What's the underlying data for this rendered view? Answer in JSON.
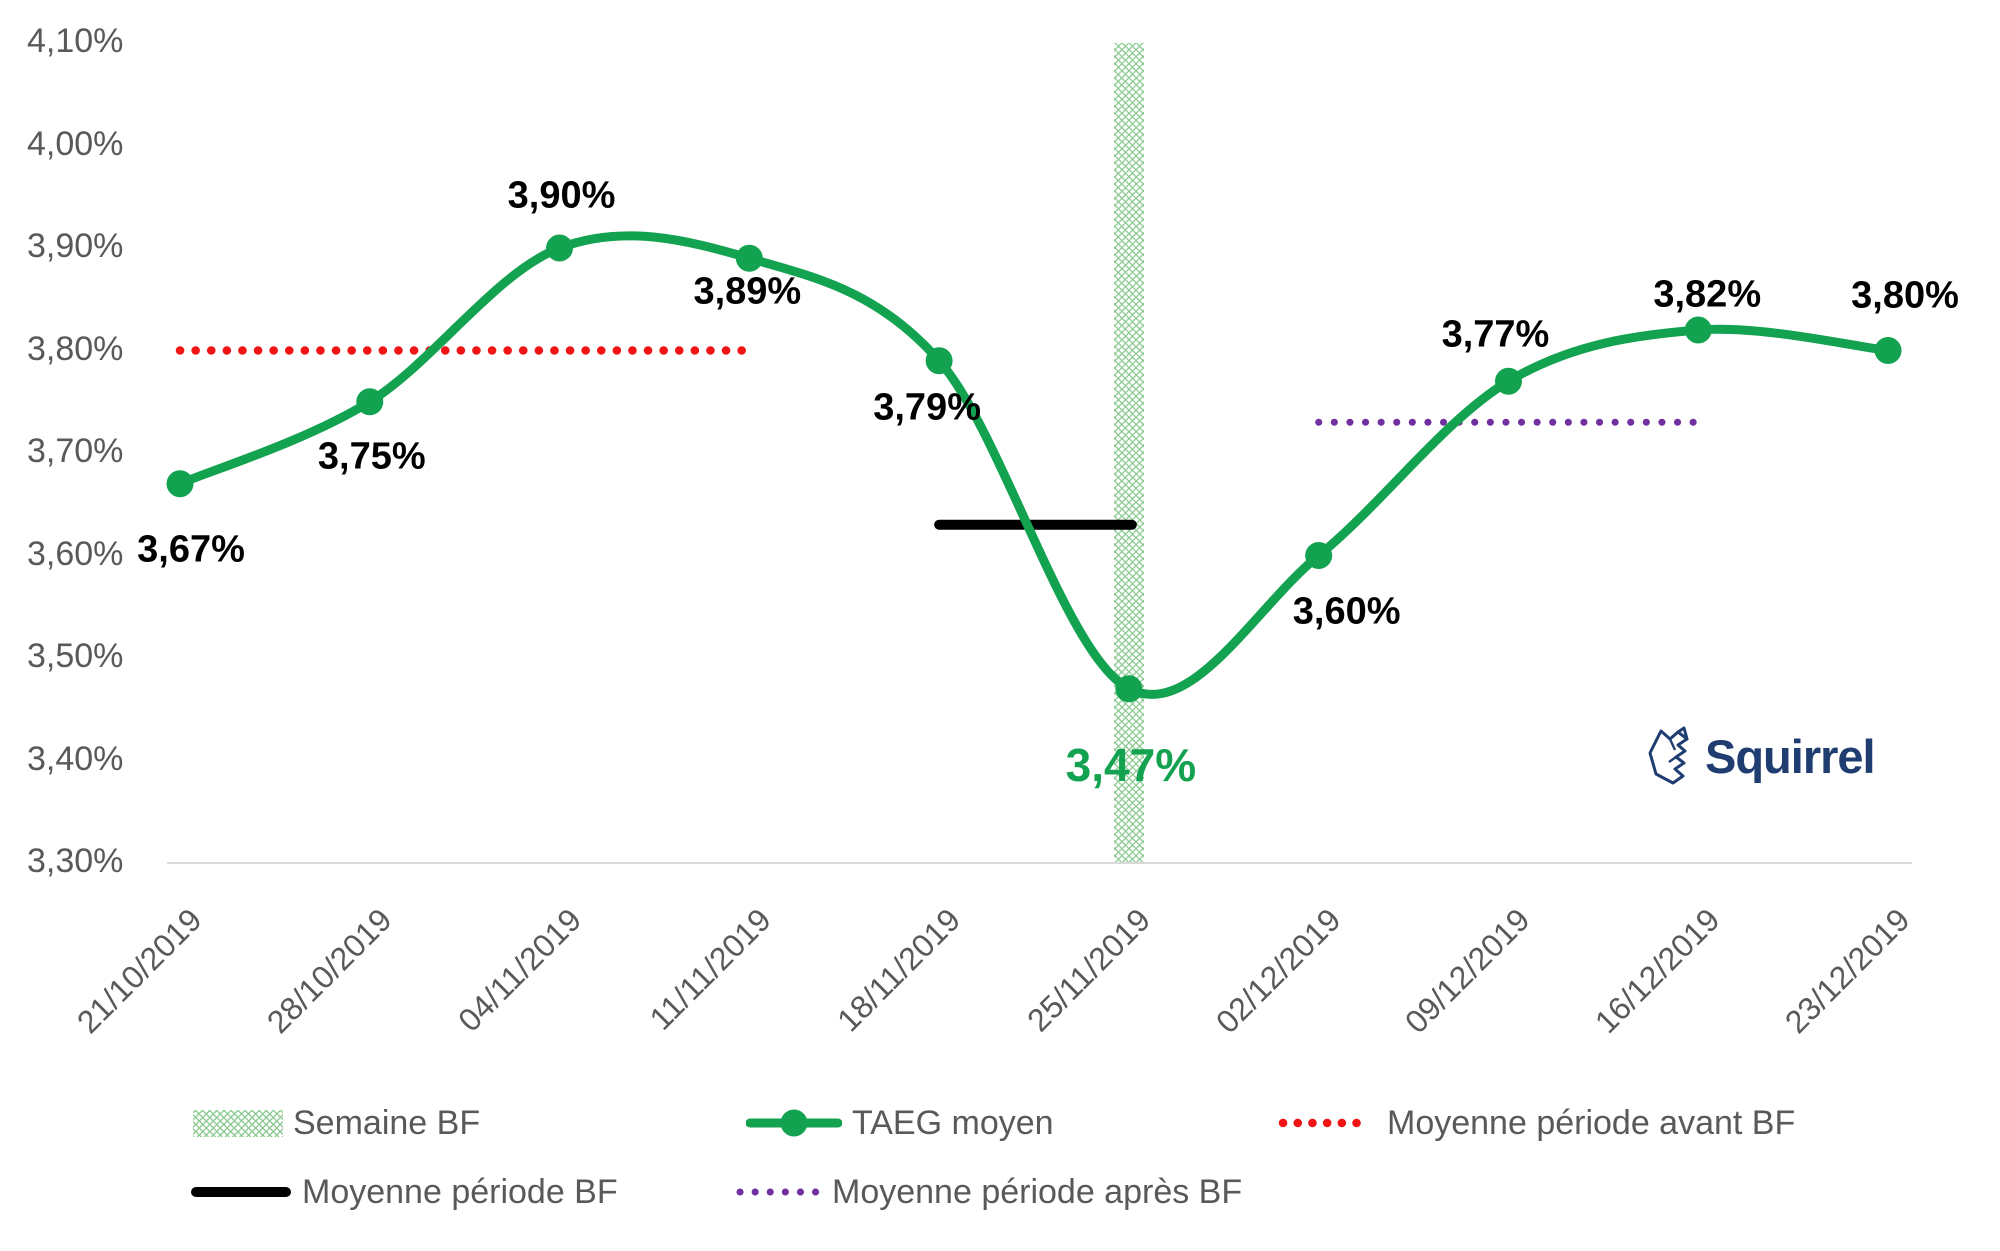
{
  "chart_data": {
    "type": "line",
    "categories": [
      "21/10/2019",
      "28/10/2019",
      "04/11/2019",
      "11/11/2019",
      "18/11/2019",
      "25/11/2019",
      "02/12/2019",
      "09/12/2019",
      "16/12/2019",
      "23/12/2019"
    ],
    "series": [
      {
        "name": "TAEG moyen",
        "values": [
          3.67,
          3.75,
          3.9,
          3.89,
          3.79,
          3.47,
          3.6,
          3.77,
          3.82,
          3.8
        ],
        "point_labels": [
          "3,67%",
          "3,75%",
          "3,90%",
          "3,89%",
          "3,79%",
          "3,47%",
          "3,60%",
          "3,77%",
          "3,82%",
          "3,80%"
        ]
      }
    ],
    "highlight_point": 5,
    "reference_lines": [
      {
        "name": "Moyenne période avant BF",
        "value": 3.8,
        "from": "21/10/2019",
        "to": "11/11/2019",
        "style": "dotted",
        "color_key": "avg_before_red"
      },
      {
        "name": "Moyenne période BF",
        "value": 3.63,
        "from": "18/11/2019",
        "to": "25/11/2019",
        "style": "solid",
        "color_key": "avg_bf_black"
      },
      {
        "name": "Moyenne période après BF",
        "value": 3.73,
        "from": "02/12/2019",
        "to": "16/12/2019",
        "style": "dotted",
        "color_key": "avg_after_purple"
      }
    ],
    "band": {
      "name": "Semaine BF",
      "category": "25/11/2019",
      "pattern": "crosshatch"
    },
    "ylim": [
      3.3,
      4.1
    ],
    "ytick_step": 0.1,
    "yticks": [
      {
        "value": 3.3,
        "label": "3,30%"
      },
      {
        "value": 3.4,
        "label": "3,40%"
      },
      {
        "value": 3.5,
        "label": "3,50%"
      },
      {
        "value": 3.6,
        "label": "3,60%"
      },
      {
        "value": 3.7,
        "label": "3,70%"
      },
      {
        "value": 3.8,
        "label": "3,80%"
      },
      {
        "value": 3.9,
        "label": "3,90%"
      },
      {
        "value": 4.0,
        "label": "4,00%"
      },
      {
        "value": 4.1,
        "label": "4,10%"
      }
    ],
    "grid": false,
    "legend_position": "bottom"
  },
  "legend": {
    "items": [
      {
        "label": "Semaine BF",
        "swatch": "hatch-green"
      },
      {
        "label": "TAEG moyen",
        "swatch": "green-line-marker"
      },
      {
        "label": "Moyenne période avant BF",
        "swatch": "red-dotted"
      },
      {
        "label": "Moyenne période BF",
        "swatch": "black-solid"
      },
      {
        "label": "Moyenne période après BF",
        "swatch": "purple-dotted"
      }
    ]
  },
  "logo": {
    "text": "Squirrel"
  },
  "colors": {
    "series_green": "#13A350",
    "avg_before_red": "#F01414",
    "avg_bf_black": "#000000",
    "avg_after_purple": "#7030A0",
    "band_green": "#86C98C",
    "axis_text": "#595959",
    "axis_line": "#D9D9D9",
    "data_label": "#000000",
    "logo_navy": "#1F3D70"
  }
}
